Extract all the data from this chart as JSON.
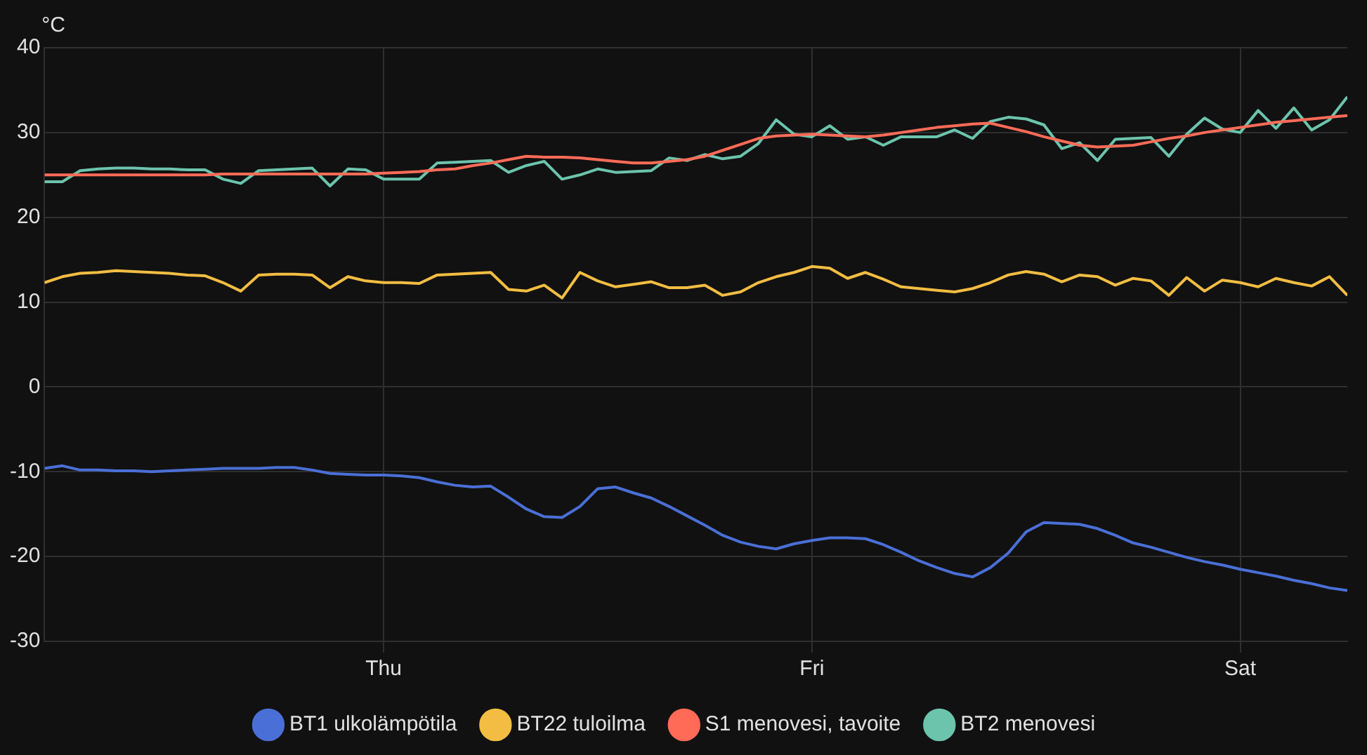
{
  "chart_data": {
    "type": "line",
    "ylabel": "°C",
    "categories": [
      null,
      null,
      null,
      null,
      null,
      null,
      null,
      null,
      null,
      null,
      null,
      null,
      null,
      null,
      null,
      null,
      null,
      null,
      null,
      "Thu",
      null,
      null,
      null,
      null,
      null,
      null,
      null,
      null,
      null,
      null,
      null,
      null,
      null,
      null,
      null,
      null,
      null,
      null,
      null,
      null,
      null,
      null,
      null,
      "Fri",
      null,
      null,
      null,
      null,
      null,
      null,
      null,
      null,
      null,
      null,
      null,
      null,
      null,
      null,
      null,
      null,
      null,
      null,
      null,
      null,
      null,
      null,
      null,
      "Sat",
      null,
      null,
      null,
      null,
      null,
      null
    ],
    "ylim": [
      -30,
      40
    ],
    "yticks": [
      -30,
      -20,
      -10,
      0,
      10,
      20,
      30,
      40
    ],
    "grid": true,
    "legend": "bottom",
    "marker": "none",
    "line_style": "solid",
    "series": [
      {
        "name": "BT1 ulkolämpötila",
        "color": "#4a6fd6",
        "values": [
          -9.6,
          -9.3,
          -9.8,
          -9.8,
          -9.9,
          -9.9,
          -10,
          -9.9,
          -9.8,
          -9.7,
          -9.6,
          -9.6,
          -9.6,
          -9.5,
          -9.5,
          -9.8,
          -10.2,
          -10.3,
          -10.4,
          -10.4,
          -10.5,
          -10.7,
          -11.2,
          -11.6,
          -11.8,
          -11.7,
          -13,
          -14.4,
          -15.3,
          -15.4,
          -14.1,
          -12,
          -11.8,
          -12.5,
          -13.1,
          -14.1,
          -15.2,
          -16.3,
          -17.5,
          -18.3,
          -18.8,
          -19.1,
          -18.5,
          -18.1,
          -17.8,
          -17.8,
          -17.9,
          -18.6,
          -19.5,
          -20.5,
          -21.3,
          -22,
          -22.4,
          -21.3,
          -19.6,
          -17.1,
          -16,
          -16.1,
          -16.2,
          -16.7,
          -17.5,
          -18.4,
          -18.9,
          -19.5,
          -20.1,
          -20.6,
          -21,
          -21.5,
          -21.9,
          -22.3,
          -22.8,
          -23.2,
          -23.7,
          -24
        ]
      },
      {
        "name": "BT22 tuloilma",
        "color": "#f2bd42",
        "values": [
          12.3,
          13,
          13.4,
          13.5,
          13.7,
          13.6,
          13.5,
          13.4,
          13.2,
          13.1,
          12.3,
          11.3,
          13.2,
          13.3,
          13.3,
          13.2,
          11.7,
          13,
          12.5,
          12.3,
          12.3,
          12.2,
          13.2,
          13.3,
          13.4,
          13.5,
          11.5,
          11.3,
          12,
          10.5,
          13.5,
          12.5,
          11.8,
          12.1,
          12.4,
          11.7,
          11.7,
          12,
          10.8,
          11.2,
          12.3,
          13,
          13.5,
          14.2,
          14,
          12.8,
          13.5,
          12.7,
          11.8,
          11.6,
          11.4,
          11.2,
          11.6,
          12.3,
          13.2,
          13.6,
          13.3,
          12.4,
          13.2,
          13,
          12,
          12.8,
          12.5,
          10.8,
          12.9,
          11.3,
          12.6,
          12.3,
          11.8,
          12.8,
          12.3,
          11.9,
          13,
          10.8
        ]
      },
      {
        "name": "S1 menovesi, tavoite",
        "color": "#ff6b57",
        "values": [
          25,
          25,
          25,
          25,
          25,
          25,
          25,
          25,
          25,
          25,
          25.1,
          25.1,
          25.1,
          25.1,
          25.1,
          25.1,
          25.1,
          25.1,
          25.1,
          25.2,
          25.3,
          25.4,
          25.6,
          25.7,
          26.1,
          26.4,
          26.8,
          27.2,
          27.1,
          27.1,
          27,
          26.8,
          26.6,
          26.4,
          26.4,
          26.6,
          26.8,
          27.2,
          27.9,
          28.6,
          29.3,
          29.6,
          29.7,
          29.8,
          29.7,
          29.6,
          29.5,
          29.7,
          30,
          30.3,
          30.6,
          30.8,
          31,
          31.1,
          30.6,
          30.1,
          29.5,
          29,
          28.5,
          28.3,
          28.4,
          28.5,
          28.9,
          29.3,
          29.6,
          30,
          30.3,
          30.6,
          30.9,
          31.2,
          31.4,
          31.6,
          31.8,
          32
        ]
      },
      {
        "name": "BT2 menovesi",
        "color": "#6cc4ad",
        "values": [
          24.2,
          24.2,
          25.5,
          25.7,
          25.8,
          25.8,
          25.7,
          25.7,
          25.6,
          25.6,
          24.5,
          24,
          25.5,
          25.6,
          25.7,
          25.8,
          23.7,
          25.7,
          25.6,
          24.5,
          24.5,
          24.5,
          26.4,
          26.5,
          26.6,
          26.7,
          25.3,
          26.1,
          26.6,
          24.5,
          25,
          25.7,
          25.3,
          25.4,
          25.5,
          27,
          26.7,
          27.4,
          26.9,
          27.2,
          28.7,
          31.5,
          29.8,
          29.5,
          30.8,
          29.2,
          29.5,
          28.5,
          29.5,
          29.5,
          29.5,
          30.3,
          29.3,
          31.3,
          31.8,
          31.6,
          30.9,
          28.1,
          28.8,
          26.7,
          29.2,
          29.3,
          29.4,
          27.2,
          29.8,
          31.7,
          30.4,
          30,
          32.6,
          30.5,
          32.9,
          30.3,
          31.5,
          34.2
        ]
      }
    ]
  }
}
